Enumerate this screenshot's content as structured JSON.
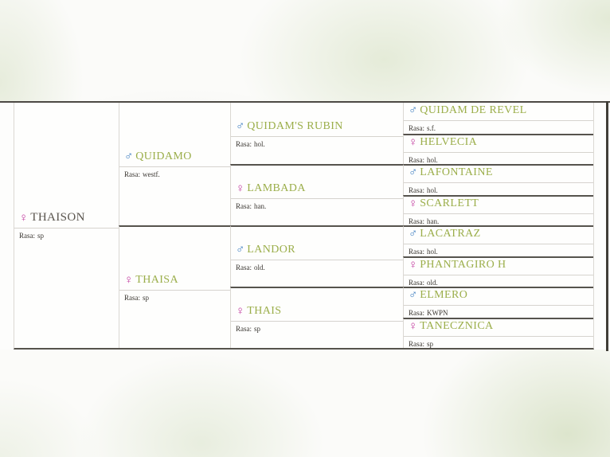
{
  "labels": {
    "breed": "Rasa:"
  },
  "symbols": {
    "male": "♂",
    "female": "♀"
  },
  "colors": {
    "name_link_green": "#9bae4a",
    "root_name_gray": "#59544d",
    "male_symbol_blue": "#3e7ec0",
    "female_symbol_pink": "#c13a9e",
    "dark_border": "#56534d",
    "light_border": "#dbd8d3"
  },
  "pedigree": {
    "gen1": [
      {
        "name": "THAISON",
        "sex": "female",
        "breed": "sp"
      }
    ],
    "gen2": [
      {
        "name": "QUIDAMO",
        "sex": "male",
        "breed": "westf."
      },
      {
        "name": "THAISA",
        "sex": "female",
        "breed": "sp"
      }
    ],
    "gen3": [
      {
        "name": "QUIDAM'S RUBIN",
        "sex": "male",
        "breed": "hol."
      },
      {
        "name": "LAMBADA",
        "sex": "female",
        "breed": "han."
      },
      {
        "name": "LANDOR",
        "sex": "male",
        "breed": "old."
      },
      {
        "name": "THAIS",
        "sex": "female",
        "breed": "sp"
      }
    ],
    "gen4": [
      {
        "name": "QUIDAM DE REVEL",
        "sex": "male",
        "breed": "s.f."
      },
      {
        "name": "HELVECIA",
        "sex": "female",
        "breed": "hol."
      },
      {
        "name": "LAFONTAINE",
        "sex": "male",
        "breed": "hol."
      },
      {
        "name": "SCARLETT",
        "sex": "female",
        "breed": "han."
      },
      {
        "name": "LACATRAZ",
        "sex": "male",
        "breed": "hol."
      },
      {
        "name": "PHANTAGIRO H",
        "sex": "female",
        "breed": "old."
      },
      {
        "name": "ELMERO",
        "sex": "male",
        "breed": "KWPN"
      },
      {
        "name": "TANECZNICA",
        "sex": "female",
        "breed": "sp"
      }
    ]
  }
}
